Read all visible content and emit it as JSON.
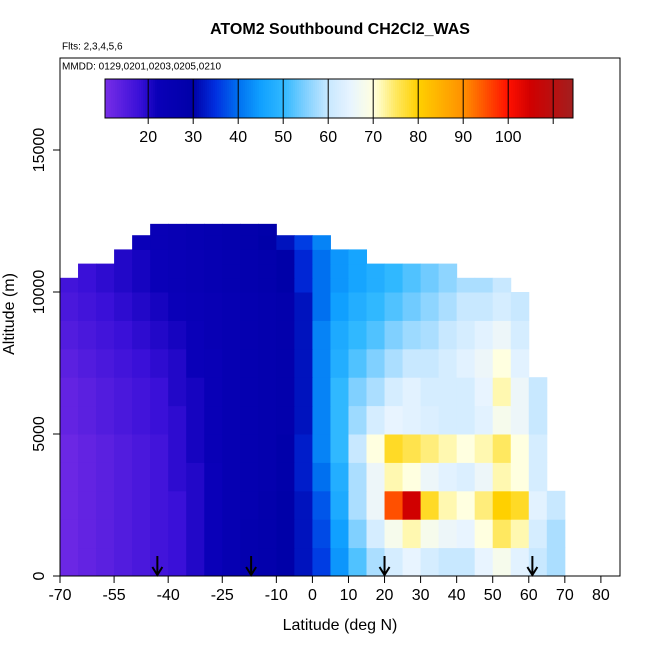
{
  "chart_data": {
    "type": "heatmap",
    "title": "ATOM2 Southbound CH2Cl2_WAS",
    "subtitle": "Flts: 2,3,4,5,6",
    "annotation": "MMDD: 0129,0201,0203,0205,0210",
    "x_label": "Latitude (deg N)",
    "y_label": "Altitude (m)",
    "xlim": [
      -70,
      85.3
    ],
    "ylim": [
      0,
      18240
    ],
    "xticks": [
      -70,
      -55,
      -40,
      -25,
      -10,
      0,
      10,
      20,
      30,
      40,
      50,
      60,
      70,
      80
    ],
    "yticks": [
      0,
      5000,
      10000,
      15000
    ],
    "lat_edges": [
      -70,
      -65,
      -60,
      -55,
      -50,
      -45,
      -40,
      -35,
      -30,
      -25,
      -20,
      -15,
      -10,
      -5,
      0,
      5,
      10,
      15,
      20,
      25,
      30,
      35,
      40,
      45,
      50,
      55,
      60,
      65,
      70
    ],
    "alt_edges": [
      0,
      1000,
      2000,
      3000,
      4000,
      5000,
      6000,
      7000,
      8000,
      9000,
      10000,
      10500,
      11000,
      11500,
      12000,
      12400
    ],
    "z": [
      [
        12,
        13,
        14,
        15,
        16,
        17,
        18,
        20,
        22,
        25,
        27,
        28,
        30,
        32,
        36,
        44,
        52,
        58,
        62,
        65,
        62,
        60,
        60,
        65,
        68,
        64,
        60,
        58
      ],
      [
        12,
        13,
        14,
        15,
        16,
        17,
        18,
        20,
        22,
        25,
        27,
        28,
        30,
        32,
        37,
        45,
        55,
        62,
        68,
        72,
        68,
        66,
        65,
        70,
        75,
        72,
        62,
        58
      ],
      [
        12,
        13,
        14,
        15,
        16,
        17,
        18,
        20,
        22,
        25,
        26,
        28,
        30,
        32,
        38,
        47,
        58,
        66,
        95,
        105,
        78,
        72,
        70,
        74,
        80,
        78,
        64,
        60
      ],
      [
        12,
        13,
        14,
        15,
        16,
        17,
        19,
        20,
        22,
        25,
        26,
        27,
        29,
        33,
        40,
        48,
        58,
        66,
        72,
        70,
        66,
        64,
        63,
        66,
        72,
        70,
        62,
        null
      ],
      [
        12,
        13,
        14,
        15,
        16,
        17,
        19,
        21,
        23,
        25,
        26,
        27,
        29,
        33,
        42,
        50,
        60,
        70,
        78,
        76,
        74,
        72,
        70,
        72,
        75,
        70,
        62,
        null
      ],
      [
        13,
        14,
        15,
        16,
        17,
        18,
        19,
        21,
        23,
        25,
        26,
        27,
        28,
        32,
        42,
        50,
        57,
        62,
        65,
        64,
        63,
        62,
        62,
        64,
        68,
        66,
        60,
        null
      ],
      [
        13,
        14,
        15,
        16,
        17,
        18,
        20,
        21,
        23,
        25,
        26,
        27,
        28,
        32,
        42,
        50,
        55,
        58,
        62,
        64,
        62,
        62,
        62,
        65,
        72,
        66,
        60,
        null
      ],
      [
        14,
        15,
        16,
        17,
        18,
        19,
        20,
        22,
        23,
        25,
        26,
        27,
        28,
        32,
        42,
        48,
        52,
        55,
        58,
        60,
        60,
        62,
        64,
        66,
        70,
        64,
        null,
        null
      ],
      [
        15,
        16,
        17,
        18,
        19,
        20,
        21,
        22,
        24,
        25,
        26,
        27,
        28,
        32,
        42,
        47,
        50,
        52,
        55,
        57,
        58,
        60,
        62,
        64,
        66,
        62,
        null,
        null
      ],
      [
        16,
        17,
        18,
        19,
        20,
        21,
        22,
        23,
        24,
        25,
        26,
        27,
        28,
        32,
        40,
        45,
        48,
        50,
        52,
        54,
        56,
        58,
        60,
        60,
        62,
        60,
        null,
        null
      ],
      [
        17,
        18,
        19,
        20,
        21,
        22,
        23,
        24,
        25,
        26,
        27,
        28,
        30,
        34,
        40,
        44,
        46,
        48,
        50,
        52,
        54,
        56,
        58,
        58,
        60,
        null,
        null,
        null
      ],
      [
        null,
        18,
        19,
        20,
        21,
        22,
        23,
        24,
        25,
        26,
        27,
        28,
        30,
        34,
        40,
        44,
        46,
        48,
        50,
        52,
        54,
        56,
        null,
        null,
        null,
        null,
        null,
        null
      ],
      [
        null,
        null,
        null,
        20,
        21,
        22,
        23,
        24,
        25,
        26,
        27,
        28,
        30,
        34,
        40,
        44,
        46,
        null,
        null,
        null,
        null,
        null,
        null,
        null,
        null,
        null,
        null,
        null
      ],
      [
        null,
        null,
        null,
        null,
        22,
        23,
        24,
        25,
        26,
        27,
        28,
        30,
        32,
        36,
        42,
        null,
        null,
        null,
        null,
        null,
        null,
        null,
        null,
        null,
        null,
        null,
        null,
        null
      ],
      [
        null,
        null,
        null,
        null,
        null,
        23,
        24,
        25,
        26,
        27,
        28,
        29,
        null,
        null,
        null,
        null,
        null,
        null,
        null,
        null,
        null,
        null,
        null,
        null,
        null,
        null,
        null,
        null
      ]
    ],
    "colorbar_lim": [
      10.4,
      114.4
    ],
    "colorbar_ticks": [
      20,
      30,
      40,
      50,
      60,
      70,
      80,
      90,
      100
    ],
    "colorbar_breaks": [
      20,
      30,
      40,
      50,
      60,
      70,
      80,
      90,
      100,
      110
    ],
    "colorscale": [
      [
        10,
        "#7b2fe8"
      ],
      [
        18,
        "#3a10d8"
      ],
      [
        22,
        "#0a00b8"
      ],
      [
        30,
        "#0000a8"
      ],
      [
        35,
        "#0030e0"
      ],
      [
        40,
        "#0070f0"
      ],
      [
        45,
        "#10a0ff"
      ],
      [
        50,
        "#30b8ff"
      ],
      [
        55,
        "#80d0ff"
      ],
      [
        60,
        "#c8e8ff"
      ],
      [
        65,
        "#e8f4ff"
      ],
      [
        70,
        "#ffffe0"
      ],
      [
        72,
        "#fff8b0"
      ],
      [
        75,
        "#ffe860"
      ],
      [
        80,
        "#ffd000"
      ],
      [
        85,
        "#ffb000"
      ],
      [
        90,
        "#ff9000"
      ],
      [
        95,
        "#ff5000"
      ],
      [
        100,
        "#ff1000"
      ],
      [
        105,
        "#d00000"
      ],
      [
        115,
        "#a02020"
      ]
    ],
    "arrows": [
      -43,
      -17,
      20,
      61
    ]
  }
}
